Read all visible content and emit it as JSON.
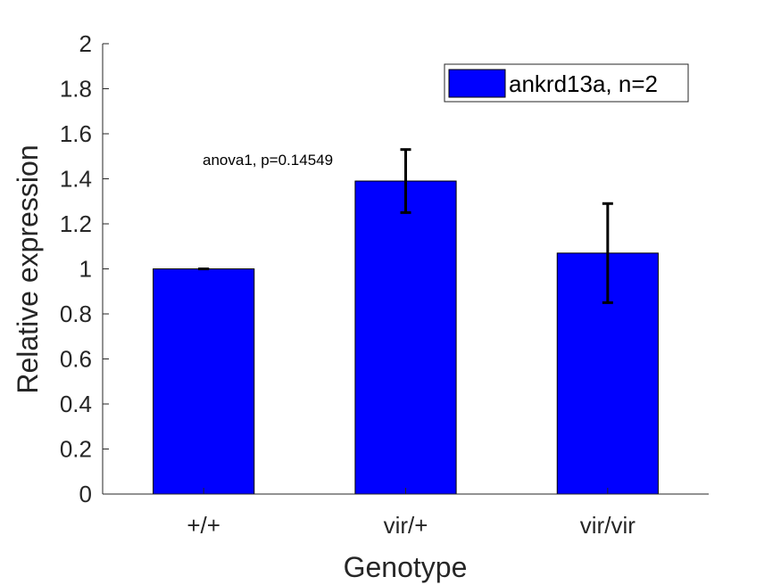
{
  "chart_data": {
    "type": "bar",
    "title": "",
    "xlabel": "Genotype",
    "ylabel": "Relative expression",
    "categories": [
      "+/+",
      "vir/+",
      "vir/vir"
    ],
    "series": [
      {
        "name": "ankrd13a, n=2",
        "values": [
          1.0,
          1.39,
          1.07
        ],
        "error": [
          0.0,
          0.14,
          0.22
        ],
        "color": "#0000ff"
      }
    ],
    "ylim": [
      0,
      2
    ],
    "yticks": [
      0,
      0.2,
      0.4,
      0.6,
      0.8,
      1,
      1.2,
      1.4,
      1.6,
      1.8,
      2
    ],
    "ytick_labels": [
      "0",
      "0.2",
      "0.4",
      "0.6",
      "0.8",
      "1",
      "1.2",
      "1.4",
      "1.6",
      "1.8",
      "2"
    ],
    "grid": false,
    "legend_position": "top-right",
    "annotation": "anova1, p=0.14549"
  }
}
